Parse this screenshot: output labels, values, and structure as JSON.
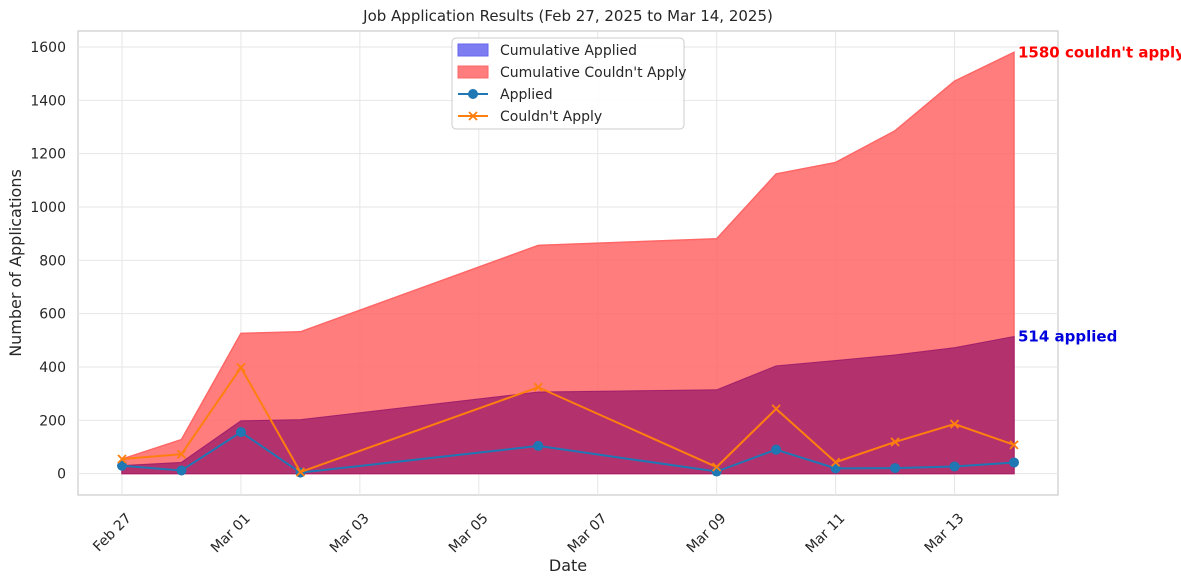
{
  "chart_data": {
    "type": "area",
    "title": "Job Application Results (Feb 27, 2025 to Mar 14, 2025)",
    "xlabel": "Date",
    "ylabel": "Number of Applications",
    "x": [
      "2025-02-27",
      "2025-02-28",
      "2025-03-01",
      "2025-03-02",
      "2025-03-06",
      "2025-03-09",
      "2025-03-10",
      "2025-03-11",
      "2025-03-12",
      "2025-03-13",
      "2025-03-14"
    ],
    "xticks": [
      {
        "date": "2025-02-27",
        "label": "Feb 27"
      },
      {
        "date": "2025-03-01",
        "label": "Mar 01"
      },
      {
        "date": "2025-03-03",
        "label": "Mar 03"
      },
      {
        "date": "2025-03-05",
        "label": "Mar 05"
      },
      {
        "date": "2025-03-07",
        "label": "Mar 07"
      },
      {
        "date": "2025-03-09",
        "label": "Mar 09"
      },
      {
        "date": "2025-03-11",
        "label": "Mar 11"
      },
      {
        "date": "2025-03-13",
        "label": "Mar 13"
      }
    ],
    "yticks": [
      0,
      200,
      400,
      600,
      800,
      1000,
      1200,
      1400,
      1600
    ],
    "ylim": [
      -80,
      1660
    ],
    "grid": true,
    "legend_position": "top-center",
    "series": [
      {
        "name": "Cumulative Applied",
        "kind": "area",
        "color": "#6666ee",
        "values": [
          30,
          42,
          198,
          202,
          306,
          314,
          404,
          424,
          445,
          472,
          514
        ]
      },
      {
        "name": "Cumulative Couldn't Apply",
        "kind": "area",
        "color": "#ff6666",
        "values": [
          55,
          128,
          526,
          532,
          856,
          881,
          1124,
          1167,
          1286,
          1472,
          1580
        ]
      },
      {
        "name": "Applied",
        "kind": "line",
        "marker": "circle",
        "color": "#1f77b4",
        "values": [
          30,
          12,
          156,
          4,
          104,
          8,
          90,
          20,
          21,
          27,
          42
        ]
      },
      {
        "name": "Couldn't Apply",
        "kind": "line",
        "marker": "x",
        "color": "#ff7f0e",
        "values": [
          55,
          73,
          398,
          6,
          324,
          25,
          243,
          43,
          119,
          186,
          108
        ]
      }
    ],
    "annotations": [
      {
        "text": "1580 couldn't apply",
        "x": "2025-03-14",
        "y": 1580,
        "color": "#ff0000"
      },
      {
        "text": "514 applied",
        "x": "2025-03-14",
        "y": 514,
        "color": "#0000dd"
      }
    ]
  }
}
